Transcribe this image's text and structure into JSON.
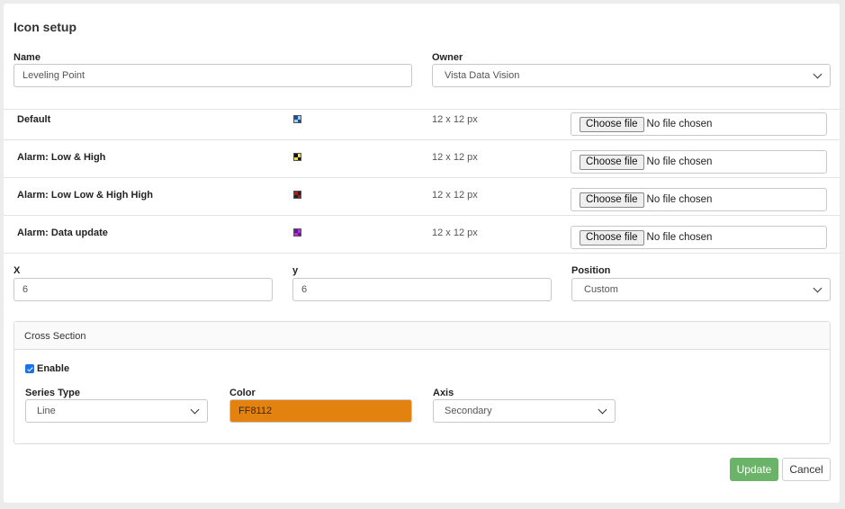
{
  "form": {
    "title": "Icon setup",
    "name_label": "Name",
    "name_value": "Leveling Point",
    "owner_label": "Owner",
    "owner_value": "Vista Data Vision"
  },
  "icons": [
    {
      "label": "Default",
      "size": "12 x 12 px",
      "choose_label": "Choose file",
      "file_status": "No file chosen",
      "colors": [
        "#1a4fa0",
        "#9ad0f5",
        "#9ad0f5",
        "#1a4fa0"
      ]
    },
    {
      "label": "Alarm: Low & High",
      "size": "12 x 12 px",
      "choose_label": "Choose file",
      "file_status": "No file chosen",
      "colors": [
        "#111111",
        "#f2e22a",
        "#f2e22a",
        "#111111"
      ]
    },
    {
      "label": "Alarm: Low Low & High High",
      "size": "12 x 12 px",
      "choose_label": "Choose file",
      "file_status": "No file chosen",
      "colors": [
        "#b01a1a",
        "#222222",
        "#222222",
        "#b01a1a"
      ]
    },
    {
      "label": "Alarm: Data update",
      "size": "12 x 12 px",
      "choose_label": "Choose file",
      "file_status": "No file chosen",
      "colors": [
        "#6a0fa8",
        "#c22ad8",
        "#c22ad8",
        "#6a0fa8"
      ]
    }
  ],
  "offset": {
    "x_label": "X",
    "x_value": "6",
    "y_label": "y",
    "y_value": "6",
    "position_label": "Position",
    "position_value": "Custom"
  },
  "cross_section": {
    "title": "Cross Section",
    "enable_label": "Enable",
    "enabled": true,
    "series_type_label": "Series Type",
    "series_type_value": "Line",
    "color_label": "Color",
    "color_value": "FF8112",
    "color_swatch": "#e3820f",
    "axis_label": "Axis",
    "axis_value": "Secondary"
  },
  "actions": {
    "update_label": "Update",
    "update_color": "#6cb36a",
    "cancel_label": "Cancel"
  }
}
